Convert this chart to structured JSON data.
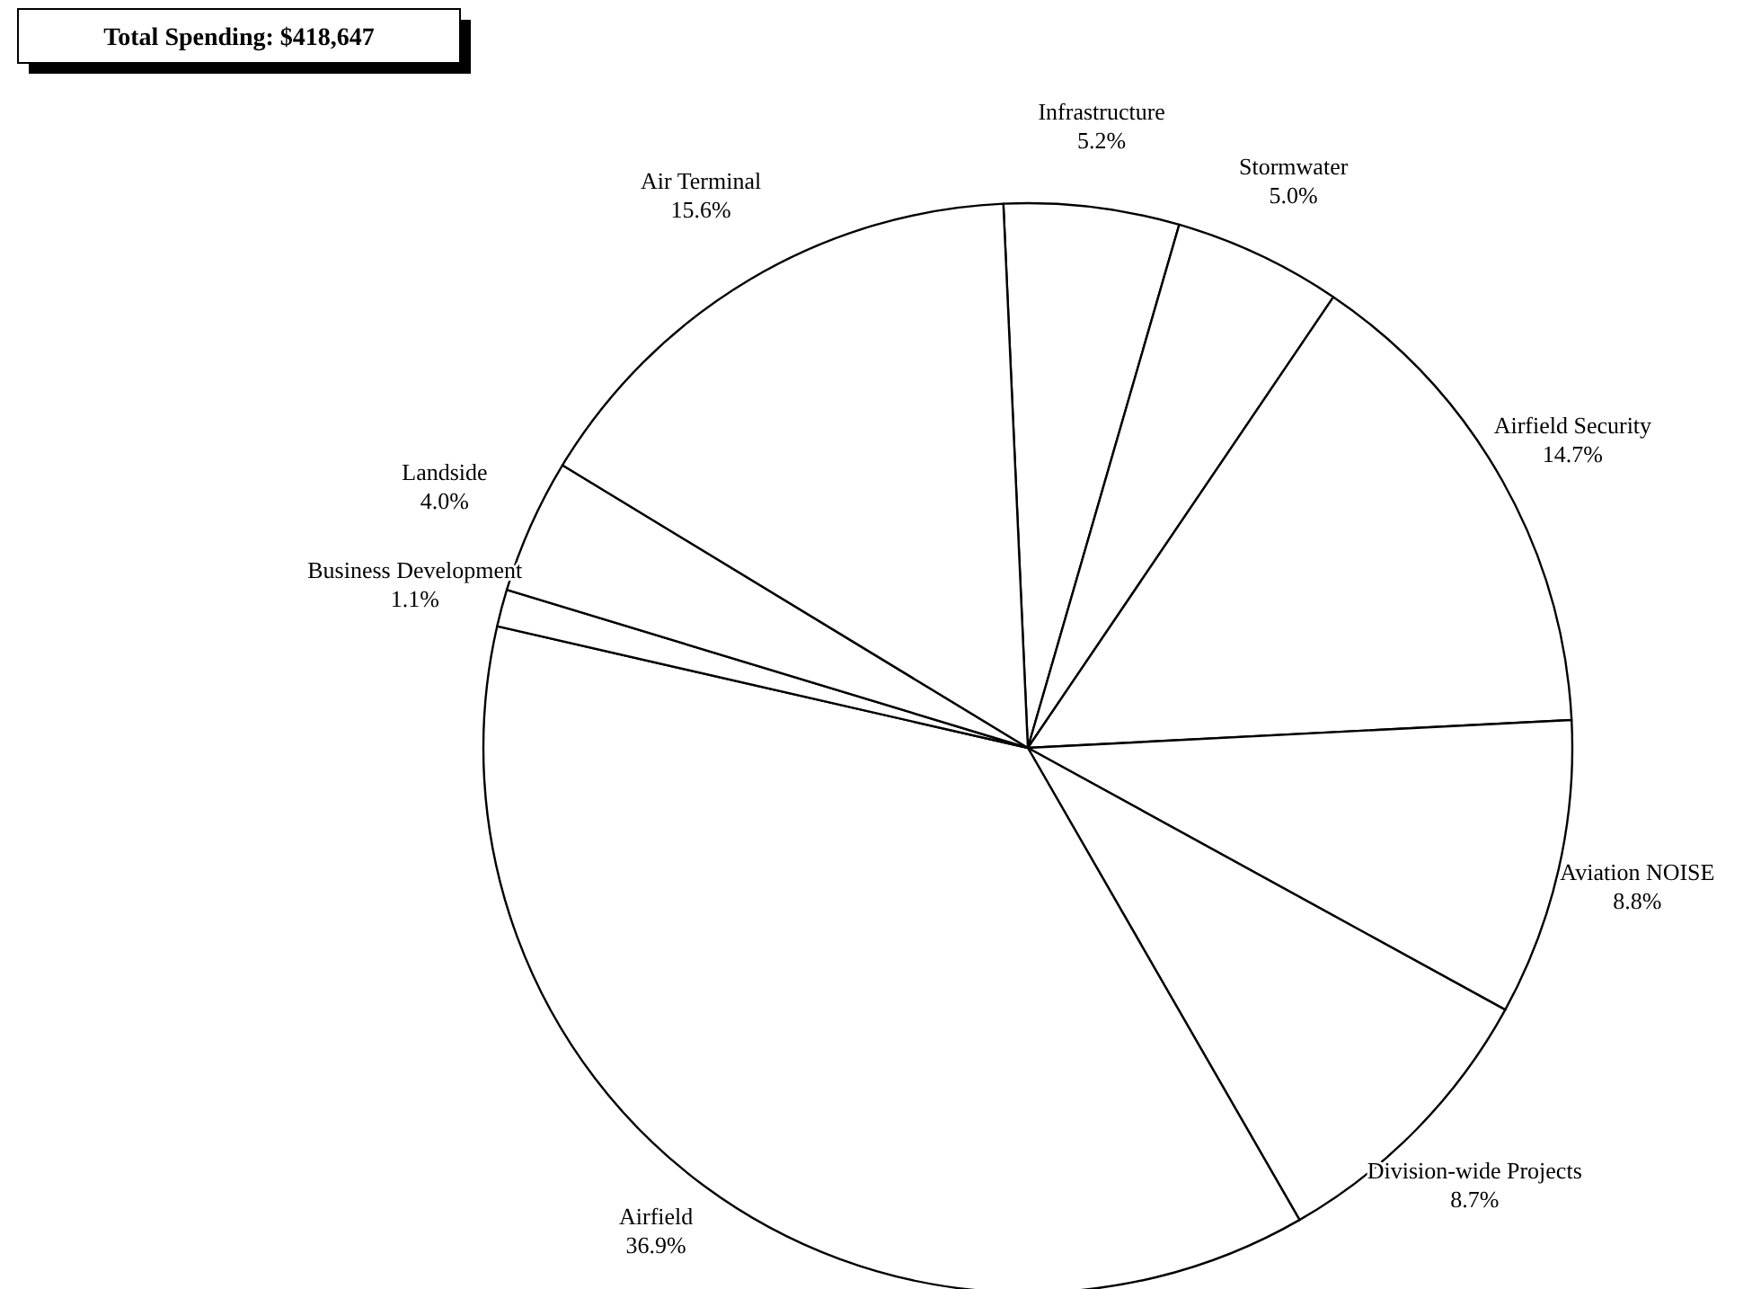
{
  "chart_data": {
    "type": "pie",
    "title": "Total Spending:  $418,647",
    "categories": [
      "Infrastructure",
      "Stormwater",
      "Airfield Security",
      "Aviation NOISE",
      "Division-wide Projects",
      "Airfield",
      "Business Development",
      "Landside",
      "Air Terminal"
    ],
    "values": [
      5.2,
      5.0,
      14.7,
      8.8,
      8.7,
      36.9,
      1.1,
      4.0,
      15.6
    ],
    "colors": [
      "#ffffff",
      "#ffffff",
      "#ffffff",
      "#ffffff",
      "#ffffff",
      "#ffffff",
      "#ffffff",
      "#ffffff",
      "#ffffff"
    ],
    "value_labels": [
      "5.2%",
      "5.0%",
      "14.7%",
      "8.8%",
      "8.7%",
      "36.9%",
      "1.1%",
      "4.0%",
      "15.6%"
    ]
  }
}
